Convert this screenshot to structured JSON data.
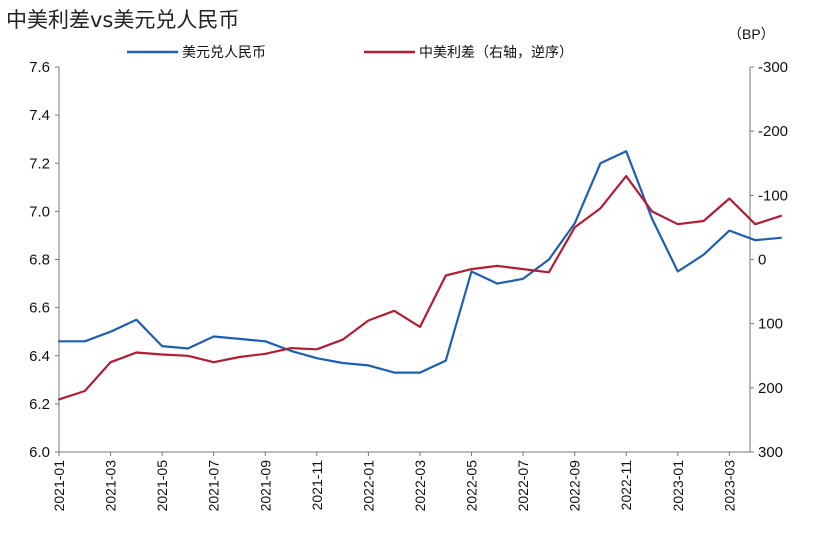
{
  "chart_data": {
    "type": "line",
    "title": "中美利差vs美元兑人民币",
    "x": [
      "2021-01",
      "2021-02",
      "2021-03",
      "2021-04",
      "2021-05",
      "2021-06",
      "2021-07",
      "2021-08",
      "2021-09",
      "2021-10",
      "2021-11",
      "2021-12",
      "2022-01",
      "2022-02",
      "2022-03",
      "2022-04",
      "2022-05",
      "2022-06",
      "2022-07",
      "2022-08",
      "2022-09",
      "2022-10",
      "2022-11",
      "2022-12",
      "2023-01",
      "2023-02",
      "2023-03",
      "2023-04",
      "2023-05"
    ],
    "x_ticks": [
      "2021-01",
      "2021-03",
      "2021-05",
      "2021-07",
      "2021-09",
      "2021-11",
      "2022-01",
      "2022-03",
      "2022-05",
      "2022-07",
      "2022-09",
      "2022-11",
      "2023-01",
      "2023-03"
    ],
    "series": [
      {
        "name": "美元兑人民币",
        "axis": "left",
        "color": "#1f5fb0",
        "values": [
          6.46,
          6.46,
          6.5,
          6.55,
          6.44,
          6.43,
          6.48,
          6.47,
          6.46,
          6.42,
          6.39,
          6.37,
          6.36,
          6.33,
          6.33,
          6.38,
          6.75,
          6.7,
          6.72,
          6.8,
          6.95,
          7.2,
          7.25,
          6.97,
          6.75,
          6.82,
          6.92,
          6.88,
          6.89
        ]
      },
      {
        "name": "中美利差（右轴，逆序）",
        "axis": "right",
        "color": "#b01e33",
        "values": [
          218,
          205,
          160,
          145,
          148,
          150,
          160,
          152,
          147,
          138,
          140,
          125,
          95,
          80,
          105,
          25,
          15,
          10,
          15,
          20,
          -50,
          -80,
          -130,
          -75,
          -55,
          -60,
          -95,
          -55,
          -68
        ]
      }
    ],
    "left_axis": {
      "ylim": [
        6.0,
        7.6
      ],
      "ticks": [
        "6.0",
        "6.2",
        "6.4",
        "6.6",
        "6.8",
        "7.0",
        "7.2",
        "7.4",
        "7.6"
      ]
    },
    "right_axis": {
      "unit": "（BP）",
      "ylim": [
        300,
        -300
      ],
      "inverted": true,
      "ticks": [
        "-300",
        "-200",
        "-100",
        "0",
        "100",
        "200",
        "300"
      ]
    },
    "grid": false,
    "legend": "top"
  }
}
